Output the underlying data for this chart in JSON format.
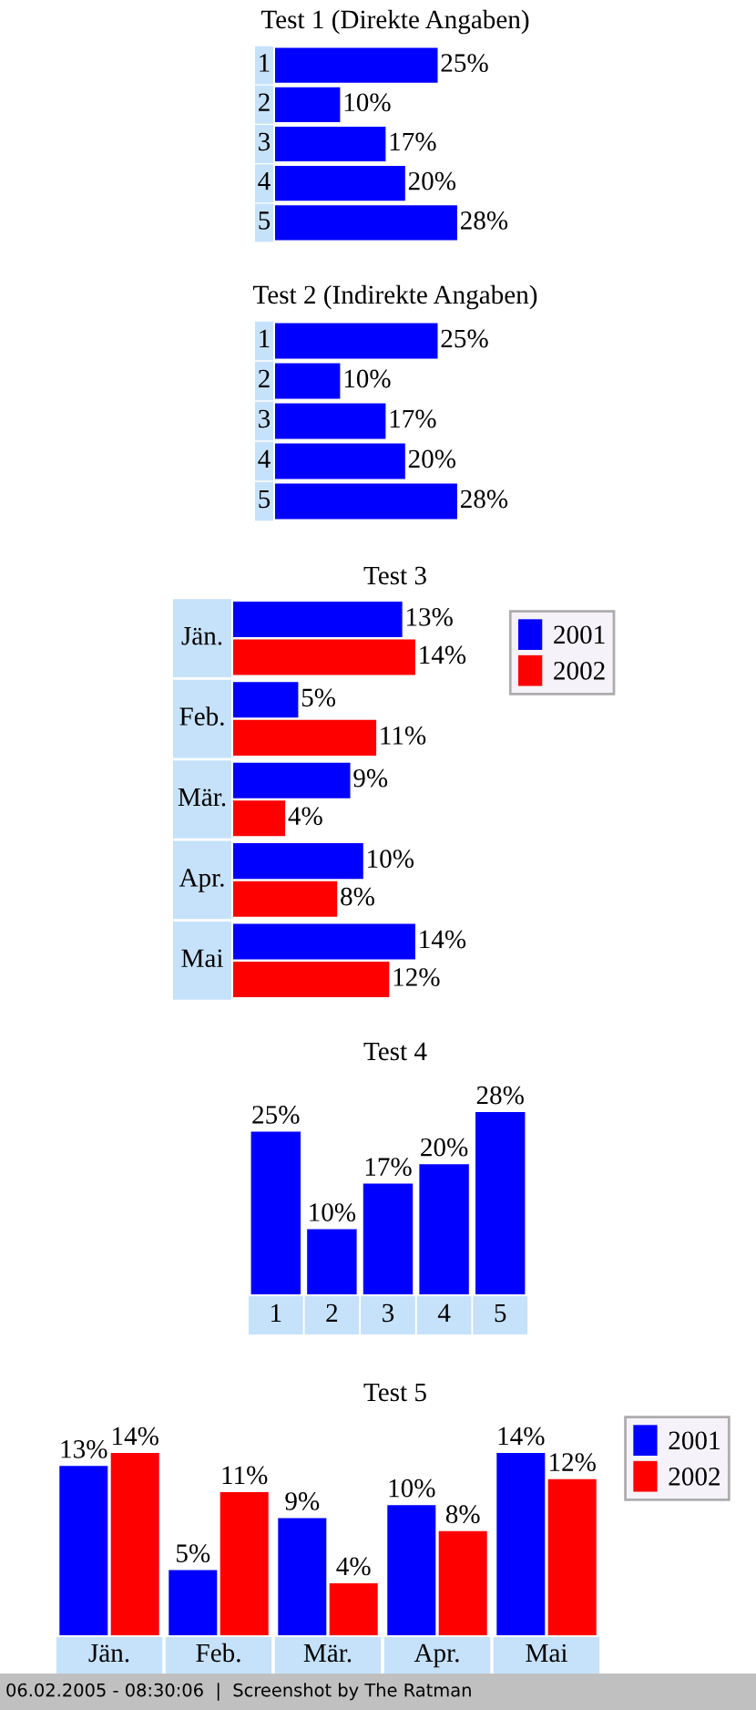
{
  "chart_data": [
    {
      "type": "bar",
      "orientation": "horizontal",
      "title": "Test 1 (Direkte Angaben)",
      "categories": [
        "1",
        "2",
        "3",
        "4",
        "5"
      ],
      "values": [
        25,
        10,
        17,
        20,
        28
      ],
      "color": "#0000ff",
      "value_labels": [
        "25%",
        "10%",
        "17%",
        "20%",
        "28%"
      ]
    },
    {
      "type": "bar",
      "orientation": "horizontal",
      "title": "Test 2 (Indirekte Angaben)",
      "categories": [
        "1",
        "2",
        "3",
        "4",
        "5"
      ],
      "values": [
        25,
        10,
        17,
        20,
        28
      ],
      "color": "#0000ff",
      "value_labels": [
        "25%",
        "10%",
        "17%",
        "20%",
        "28%"
      ]
    },
    {
      "type": "bar",
      "orientation": "horizontal",
      "title": "Test 3",
      "categories": [
        "Jän.",
        "Feb.",
        "Mär.",
        "Apr.",
        "Mai"
      ],
      "legend": "right",
      "series": [
        {
          "name": "2001",
          "color": "#0000ff",
          "values": [
            13,
            5,
            9,
            10,
            14
          ],
          "value_labels": [
            "13%",
            "5%",
            "9%",
            "10%",
            "14%"
          ]
        },
        {
          "name": "2002",
          "color": "#ff0000",
          "values": [
            14,
            11,
            4,
            8,
            12
          ],
          "value_labels": [
            "14%",
            "11%",
            "4%",
            "8%",
            "12%"
          ]
        }
      ]
    },
    {
      "type": "bar",
      "title": "Test 4",
      "categories": [
        "1",
        "2",
        "3",
        "4",
        "5"
      ],
      "values": [
        25,
        10,
        17,
        20,
        28
      ],
      "color": "#0000ff",
      "value_labels": [
        "25%",
        "10%",
        "17%",
        "20%",
        "28%"
      ]
    },
    {
      "type": "bar",
      "title": "Test 5",
      "categories": [
        "Jän.",
        "Feb.",
        "Mär.",
        "Apr.",
        "Mai"
      ],
      "legend": "right",
      "series": [
        {
          "name": "2001",
          "color": "#0000ff",
          "values": [
            13,
            5,
            9,
            10,
            14
          ],
          "value_labels": [
            "13%",
            "5%",
            "9%",
            "10%",
            "14%"
          ]
        },
        {
          "name": "2002",
          "color": "#ff0000",
          "values": [
            14,
            11,
            4,
            8,
            12
          ],
          "value_labels": [
            "14%",
            "11%",
            "4%",
            "8%",
            "12%"
          ]
        }
      ],
      "annotations": [
        "06.02.2005 - 08:30:06  |  Screenshot by The Ratman"
      ]
    }
  ]
}
